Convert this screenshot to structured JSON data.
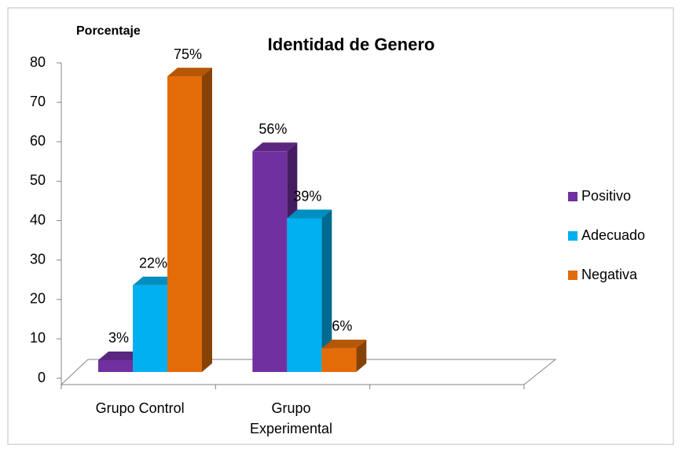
{
  "chart_data": {
    "type": "bar3d",
    "title": "Identidad de Genero",
    "y_label": "Porcentaje",
    "categories": [
      "Grupo Control",
      "Grupo Experimental",
      null
    ],
    "series": [
      {
        "name": "Positivo",
        "color": "#7030a0",
        "values": [
          3,
          56,
          null
        ],
        "value_labels": [
          "3%",
          "56%",
          null
        ]
      },
      {
        "name": "Adecuado",
        "color": "#00b0f0",
        "values": [
          22,
          39,
          null
        ],
        "value_labels": [
          "22%",
          "39%",
          null
        ]
      },
      {
        "name": "Negativa",
        "color": "#e36c09",
        "values": [
          75,
          6,
          null
        ],
        "value_labels": [
          "75%",
          "6%",
          null
        ]
      }
    ],
    "ylim": [
      0,
      80
    ],
    "yticks": [
      0,
      10,
      20,
      30,
      40,
      50,
      60,
      70,
      80
    ],
    "grid": false,
    "legend": "right"
  }
}
